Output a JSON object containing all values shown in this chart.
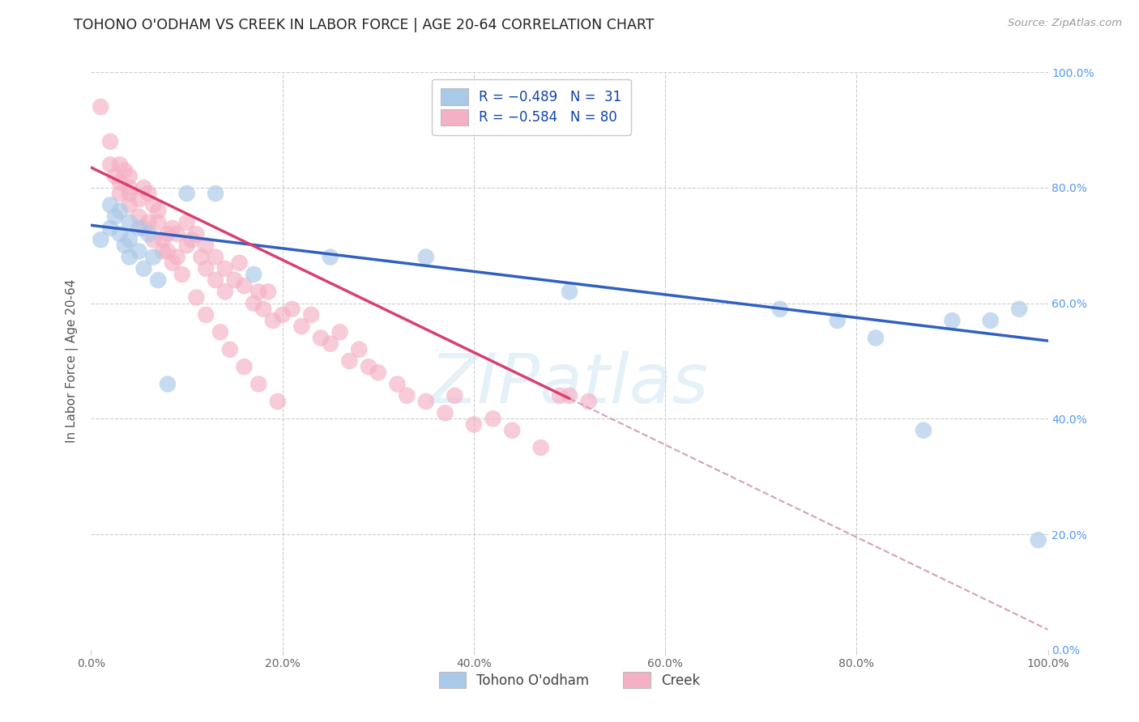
{
  "title": "TOHONO O'ODHAM VS CREEK IN LABOR FORCE | AGE 20-64 CORRELATION CHART",
  "source": "Source: ZipAtlas.com",
  "ylabel": "In Labor Force | Age 20-64",
  "xlim": [
    0.0,
    1.0
  ],
  "ylim": [
    0.0,
    1.0
  ],
  "color_tohono": "#aac8e8",
  "color_creek": "#f4b0c4",
  "line_color_tohono": "#3060c0",
  "line_color_creek": "#d84070",
  "line_color_dashed": "#d8a0b0",
  "grid_color": "#cccccc",
  "background_color": "#ffffff",
  "watermark": "ZIPatlas",
  "ytick_color": "#5599ee",
  "axis_label_color": "#555555",
  "tohono_x": [
    0.01,
    0.02,
    0.02,
    0.025,
    0.03,
    0.03,
    0.035,
    0.04,
    0.04,
    0.04,
    0.05,
    0.05,
    0.055,
    0.06,
    0.065,
    0.07,
    0.08,
    0.1,
    0.13,
    0.17,
    0.25,
    0.35,
    0.5,
    0.72,
    0.78,
    0.82,
    0.87,
    0.9,
    0.94,
    0.97,
    0.99
  ],
  "tohono_y": [
    0.71,
    0.73,
    0.77,
    0.75,
    0.72,
    0.76,
    0.7,
    0.74,
    0.71,
    0.68,
    0.73,
    0.69,
    0.66,
    0.72,
    0.68,
    0.64,
    0.46,
    0.79,
    0.79,
    0.65,
    0.68,
    0.68,
    0.62,
    0.59,
    0.57,
    0.54,
    0.38,
    0.57,
    0.57,
    0.59,
    0.19
  ],
  "creek_x": [
    0.01,
    0.02,
    0.02,
    0.025,
    0.03,
    0.03,
    0.03,
    0.035,
    0.04,
    0.04,
    0.04,
    0.04,
    0.05,
    0.05,
    0.055,
    0.06,
    0.06,
    0.065,
    0.07,
    0.07,
    0.075,
    0.08,
    0.08,
    0.085,
    0.09,
    0.09,
    0.1,
    0.1,
    0.105,
    0.11,
    0.115,
    0.12,
    0.12,
    0.13,
    0.13,
    0.14,
    0.14,
    0.15,
    0.155,
    0.16,
    0.17,
    0.175,
    0.18,
    0.185,
    0.19,
    0.2,
    0.21,
    0.22,
    0.23,
    0.24,
    0.25,
    0.26,
    0.27,
    0.28,
    0.29,
    0.3,
    0.32,
    0.33,
    0.35,
    0.37,
    0.38,
    0.4,
    0.42,
    0.44,
    0.47,
    0.49,
    0.5,
    0.52,
    0.055,
    0.065,
    0.075,
    0.085,
    0.095,
    0.11,
    0.12,
    0.135,
    0.145,
    0.16,
    0.175,
    0.195
  ],
  "creek_y": [
    0.94,
    0.84,
    0.88,
    0.82,
    0.81,
    0.84,
    0.79,
    0.83,
    0.8,
    0.77,
    0.82,
    0.79,
    0.75,
    0.78,
    0.8,
    0.79,
    0.74,
    0.77,
    0.74,
    0.76,
    0.71,
    0.72,
    0.69,
    0.73,
    0.72,
    0.68,
    0.74,
    0.7,
    0.71,
    0.72,
    0.68,
    0.66,
    0.7,
    0.68,
    0.64,
    0.66,
    0.62,
    0.64,
    0.67,
    0.63,
    0.6,
    0.62,
    0.59,
    0.62,
    0.57,
    0.58,
    0.59,
    0.56,
    0.58,
    0.54,
    0.53,
    0.55,
    0.5,
    0.52,
    0.49,
    0.48,
    0.46,
    0.44,
    0.43,
    0.41,
    0.44,
    0.39,
    0.4,
    0.38,
    0.35,
    0.44,
    0.44,
    0.43,
    0.73,
    0.71,
    0.69,
    0.67,
    0.65,
    0.61,
    0.58,
    0.55,
    0.52,
    0.49,
    0.46,
    0.43
  ],
  "line_tohono_x0": 0.0,
  "line_tohono_y0": 0.735,
  "line_tohono_x1": 1.0,
  "line_tohono_y1": 0.535,
  "line_creek_x0": 0.0,
  "line_creek_y0": 0.835,
  "line_creek_x1": 0.5,
  "line_creek_y1": 0.435,
  "line_creek_dash_x0": 0.5,
  "line_creek_dash_y0": 0.435,
  "line_creek_dash_x1": 1.0,
  "line_creek_dash_y1": 0.035
}
